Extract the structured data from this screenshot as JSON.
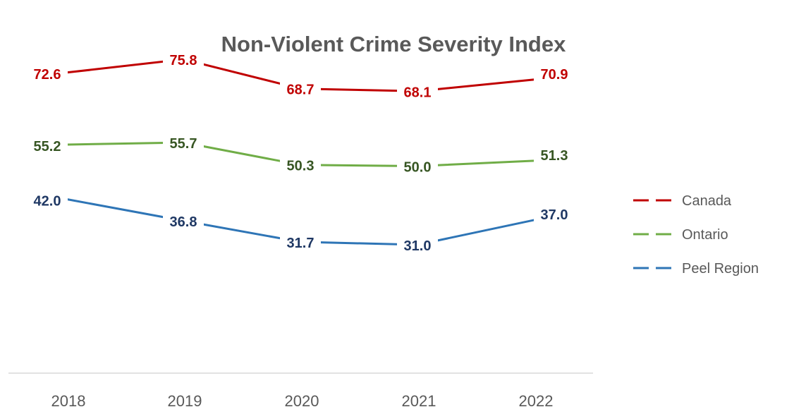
{
  "chart_data": {
    "type": "line",
    "title": "Non-Violent Crime Severity Index",
    "categories": [
      "2018",
      "2019",
      "2020",
      "2021",
      "2022"
    ],
    "series": [
      {
        "name": "Canada",
        "values": [
          72.6,
          75.8,
          68.7,
          68.1,
          70.9
        ],
        "line_color": "#C00000",
        "label_color": "#C00000"
      },
      {
        "name": "Ontario",
        "values": [
          55.2,
          55.7,
          50.3,
          50.0,
          51.3
        ],
        "line_color": "#70AD47",
        "label_color": "#375623"
      },
      {
        "name": "Peel Region",
        "values": [
          42.0,
          36.8,
          31.7,
          31.0,
          37.0
        ],
        "line_color": "#2E75B6",
        "label_color": "#1F3864"
      }
    ],
    "value_labels": {
      "Canada": [
        "72.6",
        "75.8",
        "68.7",
        "68.1",
        "70.9"
      ],
      "Ontario": [
        "55.2",
        "55.7",
        "50.3",
        "50.0",
        "51.3"
      ],
      "Peel Region": [
        "42.0",
        "36.8",
        "31.7",
        "31.0",
        "37.0"
      ]
    },
    "xlabel": "",
    "ylabel": "",
    "ylim": [
      0,
      100
    ],
    "grid": false,
    "y_axis_visible": false,
    "legend_position": "right",
    "axis_color": "#D9D9D9",
    "text_color": "#595959"
  }
}
